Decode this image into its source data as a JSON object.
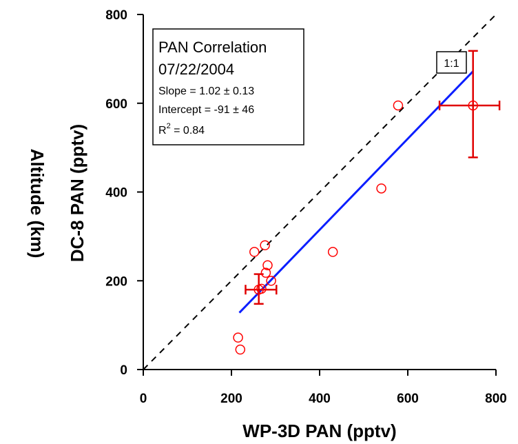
{
  "chart_data": {
    "type": "scatter",
    "xlabel": "WP-3D  PAN  (pptv)",
    "ylabel_outer": "Altitude  (km)",
    "ylabel": "DC-8 PAN  (pptv)",
    "xlim": [
      0,
      800
    ],
    "ylim": [
      0,
      800
    ],
    "x_ticks": [
      "0",
      "200",
      "400",
      "600",
      "800"
    ],
    "y_ticks": [
      "0",
      "200",
      "400",
      "600",
      "800"
    ],
    "grid": false,
    "legend_box": {
      "position": "top-left",
      "title": "PAN Correlation",
      "date": "07/22/2004",
      "slope": "Slope = 1.02 ± 0.13",
      "intercept": "Intercept = -91 ± 46",
      "r2_prefix": "R",
      "r2_exp": "2",
      "r2_value": " = 0.84"
    },
    "one_to_one_label": "1:1",
    "points": [
      {
        "x": 215,
        "y": 72
      },
      {
        "x": 220,
        "y": 45
      },
      {
        "x": 252,
        "y": 265
      },
      {
        "x": 262,
        "y": 180
      },
      {
        "x": 268,
        "y": 182
      },
      {
        "x": 276,
        "y": 280
      },
      {
        "x": 278,
        "y": 218
      },
      {
        "x": 282,
        "y": 235
      },
      {
        "x": 290,
        "y": 200
      },
      {
        "x": 430,
        "y": 265
      },
      {
        "x": 540,
        "y": 408
      },
      {
        "x": 578,
        "y": 595
      },
      {
        "x": 748,
        "y": 595
      }
    ],
    "error_bars": [
      {
        "x": 262,
        "y": 180,
        "x_err": [
          232,
          302
        ],
        "y_err": [
          148,
          215
        ]
      },
      {
        "x": 748,
        "y": 595,
        "x_err": [
          672,
          808
        ],
        "y_err": [
          478,
          718
        ]
      }
    ],
    "fit_line": {
      "x": [
        218,
        748
      ],
      "y": [
        128,
        672
      ]
    },
    "one_to_one_line": {
      "x": [
        0,
        800
      ],
      "y": [
        0,
        800
      ]
    },
    "colors": {
      "points": "#ff0000",
      "error_bars": "#e00000",
      "fit": "#0a1eff",
      "one_to_one": "#000000"
    }
  }
}
